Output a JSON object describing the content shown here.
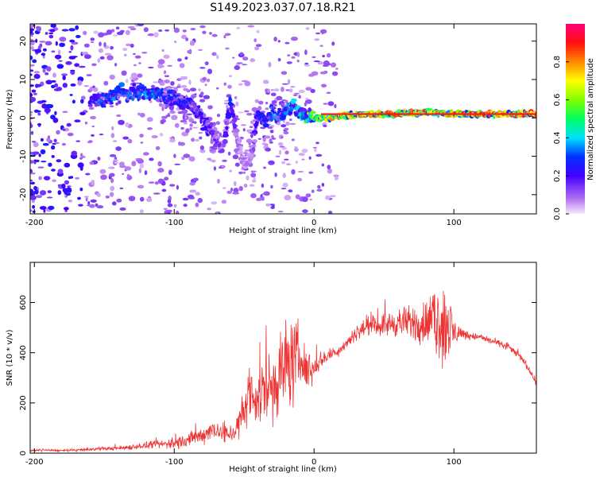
{
  "title": "S149.2023.037.07.18.R21",
  "chart_data": [
    {
      "type": "heatmap",
      "xlabel": "Height of straight line (km)",
      "ylabel": "Frequency (Hz)",
      "xlim": [
        -203,
        159
      ],
      "ylim": [
        -25,
        24.5
      ],
      "x_ticks": [
        -200,
        -100,
        0,
        100
      ],
      "y_ticks": [
        -20,
        -10,
        0,
        10,
        20
      ],
      "colorbar": {
        "label": "Normalized spectral amplitude",
        "range": [
          0,
          1
        ],
        "ticks": [
          "0.0",
          "0.2",
          "0.4",
          "0.6",
          "0.8"
        ],
        "tick_values": [
          0,
          0.2,
          0.4,
          0.6,
          0.8
        ]
      },
      "ridge": {
        "x": [
          -160,
          -150,
          -140,
          -130,
          -120,
          -110,
          -100,
          -90,
          -85,
          -80,
          -75,
          -70,
          -65,
          -60,
          -55,
          -50,
          -45,
          -40,
          -35,
          -30,
          -25,
          -20,
          -15,
          -10,
          -5,
          0,
          10,
          20,
          40,
          60,
          80,
          100,
          120,
          140,
          159
        ],
        "frequency": [
          4,
          5,
          6,
          7,
          6.5,
          6,
          5,
          4,
          2,
          0,
          -3,
          -6,
          -8,
          4,
          -5,
          -12,
          -10,
          1,
          -1,
          1,
          0,
          2,
          3,
          1,
          0,
          0,
          0,
          0.5,
          1,
          1,
          1.5,
          1,
          1,
          1,
          1
        ],
        "amplitude": [
          0.3,
          0.35,
          0.38,
          0.35,
          0.4,
          0.38,
          0.3,
          0.32,
          0.25,
          0.3,
          0.25,
          0.2,
          0.15,
          0.3,
          0.12,
          0.1,
          0.1,
          0.3,
          0.35,
          0.45,
          0.4,
          0.4,
          0.45,
          0.5,
          0.6,
          0.75,
          0.8,
          0.85,
          0.9,
          0.9,
          0.9,
          0.92,
          0.95,
          0.95,
          0.95
        ]
      }
    },
    {
      "type": "line",
      "xlabel": "Height of straight line (km)",
      "ylabel": "SNR (10 * v/v)",
      "xlim": [
        -203,
        159
      ],
      "ylim": [
        0,
        760
      ],
      "x_ticks": [
        -200,
        -100,
        0,
        100
      ],
      "y_ticks": [
        0,
        200,
        400,
        600
      ],
      "color": "#ee3333",
      "x": [
        -203,
        -190,
        -180,
        -170,
        -160,
        -150,
        -140,
        -130,
        -120,
        -110,
        -100,
        -90,
        -80,
        -75,
        -70,
        -65,
        -60,
        -55,
        -50,
        -45,
        -40,
        -35,
        -30,
        -25,
        -20,
        -15,
        -10,
        -5,
        0,
        5,
        10,
        15,
        20,
        30,
        40,
        50,
        60,
        70,
        80,
        85,
        90,
        95,
        100,
        105,
        110,
        120,
        130,
        140,
        150,
        155,
        159
      ],
      "y": [
        10,
        12,
        10,
        12,
        15,
        18,
        20,
        25,
        30,
        35,
        40,
        55,
        70,
        90,
        100,
        70,
        80,
        100,
        170,
        200,
        230,
        270,
        270,
        310,
        360,
        360,
        390,
        320,
        340,
        370,
        390,
        400,
        420,
        480,
        510,
        510,
        520,
        520,
        520,
        525,
        530,
        500,
        480,
        480,
        470,
        460,
        440,
        420,
        370,
        320,
        280
      ],
      "noise": [
        2,
        4,
        4,
        4,
        5,
        6,
        8,
        10,
        12,
        15,
        20,
        25,
        30,
        35,
        40,
        30,
        40,
        50,
        80,
        100,
        120,
        140,
        150,
        150,
        160,
        150,
        120,
        60,
        40,
        30,
        25,
        20,
        20,
        25,
        30,
        40,
        50,
        60,
        80,
        100,
        140,
        180,
        60,
        20,
        15,
        12,
        12,
        12,
        12,
        12,
        12
      ]
    }
  ]
}
